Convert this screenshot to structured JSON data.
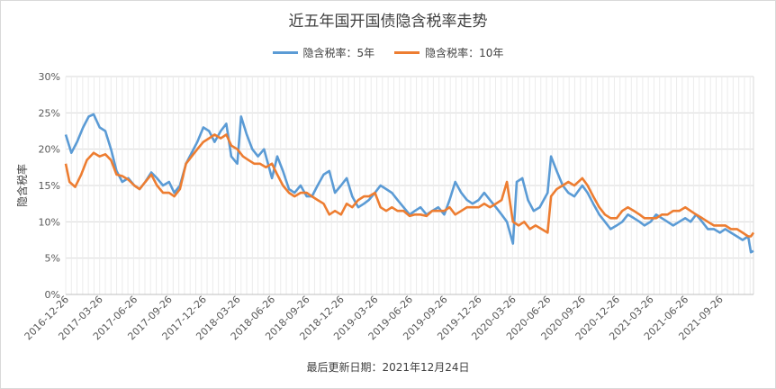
{
  "chart_data": {
    "type": "line",
    "title": "近五年国开国债隐含税率走势",
    "ylabel": "隐含税率",
    "footer": "最后更新日期：2021年12月24日",
    "ylim": [
      0,
      30
    ],
    "yticks": [
      "0%",
      "5%",
      "10%",
      "15%",
      "20%",
      "25%",
      "30%"
    ],
    "yvalues": [
      0,
      5,
      10,
      15,
      20,
      25,
      30
    ],
    "xticks": [
      "2016-12-26",
      "2017-03-26",
      "2017-06-26",
      "2017-09-26",
      "2017-12-26",
      "2018-03-26",
      "2018-06-26",
      "2018-09-26",
      "2018-12-26",
      "2019-03-26",
      "2019-06-26",
      "2019-09-26",
      "2019-12-26",
      "2020-03-26",
      "2020-06-26",
      "2020-09-26",
      "2020-12-26",
      "2021-03-26",
      "2021-06-26",
      "2021-09-26"
    ],
    "x_end": "2021-12-24",
    "grid": true,
    "legend_position": "top",
    "series": [
      {
        "name": "隐含税率：5年",
        "color": "#5b9bd5",
        "points": [
          [
            "2016-12-26",
            22
          ],
          [
            "2017-01-10",
            19.5
          ],
          [
            "2017-01-25",
            21
          ],
          [
            "2017-02-10",
            23
          ],
          [
            "2017-02-25",
            24.5
          ],
          [
            "2017-03-10",
            24.8
          ],
          [
            "2017-03-26",
            23
          ],
          [
            "2017-04-10",
            22.5
          ],
          [
            "2017-04-25",
            20
          ],
          [
            "2017-05-10",
            17
          ],
          [
            "2017-05-25",
            15.5
          ],
          [
            "2017-06-10",
            16
          ],
          [
            "2017-06-26",
            15
          ],
          [
            "2017-07-10",
            14.5
          ],
          [
            "2017-07-25",
            15.5
          ],
          [
            "2017-08-10",
            16.8
          ],
          [
            "2017-08-25",
            16
          ],
          [
            "2017-09-10",
            15
          ],
          [
            "2017-09-26",
            15.5
          ],
          [
            "2017-10-10",
            14
          ],
          [
            "2017-10-25",
            15
          ],
          [
            "2017-11-10",
            18
          ],
          [
            "2017-11-25",
            19.5
          ],
          [
            "2017-12-10",
            21
          ],
          [
            "2017-12-26",
            23
          ],
          [
            "2018-01-10",
            22.5
          ],
          [
            "2018-01-25",
            21
          ],
          [
            "2018-02-10",
            22.5
          ],
          [
            "2018-02-25",
            23.5
          ],
          [
            "2018-03-10",
            19
          ],
          [
            "2018-03-26",
            18
          ],
          [
            "2018-04-05",
            24.5
          ],
          [
            "2018-04-20",
            22
          ],
          [
            "2018-05-05",
            20
          ],
          [
            "2018-05-20",
            19
          ],
          [
            "2018-06-05",
            20
          ],
          [
            "2018-06-26",
            16
          ],
          [
            "2018-07-10",
            19
          ],
          [
            "2018-07-25",
            17
          ],
          [
            "2018-08-10",
            14.5
          ],
          [
            "2018-08-25",
            14
          ],
          [
            "2018-09-10",
            15
          ],
          [
            "2018-09-26",
            13.5
          ],
          [
            "2018-10-10",
            13.5
          ],
          [
            "2018-10-25",
            15
          ],
          [
            "2018-11-10",
            16.5
          ],
          [
            "2018-11-25",
            17
          ],
          [
            "2018-12-10",
            14
          ],
          [
            "2018-12-26",
            15
          ],
          [
            "2019-01-10",
            16
          ],
          [
            "2019-01-25",
            13.5
          ],
          [
            "2019-02-10",
            12
          ],
          [
            "2019-02-25",
            12.5
          ],
          [
            "2019-03-10",
            13
          ],
          [
            "2019-03-26",
            14
          ],
          [
            "2019-04-10",
            15
          ],
          [
            "2019-04-25",
            14.5
          ],
          [
            "2019-05-10",
            14
          ],
          [
            "2019-05-25",
            13
          ],
          [
            "2019-06-10",
            12
          ],
          [
            "2019-06-26",
            11
          ],
          [
            "2019-07-10",
            11.5
          ],
          [
            "2019-07-25",
            12
          ],
          [
            "2019-08-10",
            11
          ],
          [
            "2019-08-25",
            11.5
          ],
          [
            "2019-09-10",
            12
          ],
          [
            "2019-09-26",
            11
          ],
          [
            "2019-10-10",
            13
          ],
          [
            "2019-10-25",
            15.5
          ],
          [
            "2019-11-10",
            14
          ],
          [
            "2019-11-25",
            13
          ],
          [
            "2019-12-10",
            12.5
          ],
          [
            "2019-12-26",
            13
          ],
          [
            "2020-01-10",
            14
          ],
          [
            "2020-01-25",
            13
          ],
          [
            "2020-02-10",
            12
          ],
          [
            "2020-02-25",
            11
          ],
          [
            "2020-03-10",
            10
          ],
          [
            "2020-03-26",
            7
          ],
          [
            "2020-04-05",
            15.5
          ],
          [
            "2020-04-20",
            16
          ],
          [
            "2020-05-05",
            13
          ],
          [
            "2020-05-20",
            11.5
          ],
          [
            "2020-06-05",
            12
          ],
          [
            "2020-06-26",
            14
          ],
          [
            "2020-07-05",
            19
          ],
          [
            "2020-07-20",
            17
          ],
          [
            "2020-08-05",
            15
          ],
          [
            "2020-08-20",
            14
          ],
          [
            "2020-09-05",
            13.5
          ],
          [
            "2020-09-26",
            15
          ],
          [
            "2020-10-10",
            14
          ],
          [
            "2020-10-25",
            12.5
          ],
          [
            "2020-11-10",
            11
          ],
          [
            "2020-11-25",
            10
          ],
          [
            "2020-12-10",
            9
          ],
          [
            "2020-12-26",
            9.5
          ],
          [
            "2021-01-10",
            10
          ],
          [
            "2021-01-25",
            11
          ],
          [
            "2021-02-10",
            10.5
          ],
          [
            "2021-02-25",
            10
          ],
          [
            "2021-03-10",
            9.5
          ],
          [
            "2021-03-26",
            10
          ],
          [
            "2021-04-10",
            11
          ],
          [
            "2021-04-25",
            10.5
          ],
          [
            "2021-05-10",
            10
          ],
          [
            "2021-05-25",
            9.5
          ],
          [
            "2021-06-10",
            10
          ],
          [
            "2021-06-26",
            10.5
          ],
          [
            "2021-07-10",
            10
          ],
          [
            "2021-07-25",
            11
          ],
          [
            "2021-08-10",
            10
          ],
          [
            "2021-08-25",
            9
          ],
          [
            "2021-09-10",
            9
          ],
          [
            "2021-09-26",
            8.5
          ],
          [
            "2021-10-10",
            9
          ],
          [
            "2021-10-25",
            8.5
          ],
          [
            "2021-11-10",
            8
          ],
          [
            "2021-11-25",
            7.5
          ],
          [
            "2021-12-10",
            8
          ],
          [
            "2021-12-17",
            5.8
          ],
          [
            "2021-12-24",
            6
          ]
        ]
      },
      {
        "name": "隐含税率：10年",
        "color": "#ed7d31",
        "points": [
          [
            "2016-12-26",
            18
          ],
          [
            "2017-01-05",
            15.5
          ],
          [
            "2017-01-20",
            14.8
          ],
          [
            "2017-02-05",
            16.5
          ],
          [
            "2017-02-20",
            18.5
          ],
          [
            "2017-03-10",
            19.5
          ],
          [
            "2017-03-26",
            19
          ],
          [
            "2017-04-10",
            19.3
          ],
          [
            "2017-04-25",
            18.5
          ],
          [
            "2017-05-10",
            16.5
          ],
          [
            "2017-05-25",
            16.3
          ],
          [
            "2017-06-10",
            15.8
          ],
          [
            "2017-06-26",
            15
          ],
          [
            "2017-07-10",
            14.5
          ],
          [
            "2017-07-25",
            15.5
          ],
          [
            "2017-08-10",
            16.5
          ],
          [
            "2017-08-25",
            15
          ],
          [
            "2017-09-10",
            14
          ],
          [
            "2017-09-26",
            14
          ],
          [
            "2017-10-10",
            13.5
          ],
          [
            "2017-10-25",
            14.5
          ],
          [
            "2017-11-10",
            18
          ],
          [
            "2017-11-25",
            19
          ],
          [
            "2017-12-10",
            20
          ],
          [
            "2017-12-26",
            21
          ],
          [
            "2018-01-10",
            21.5
          ],
          [
            "2018-01-25",
            22
          ],
          [
            "2018-02-10",
            21.5
          ],
          [
            "2018-02-25",
            22
          ],
          [
            "2018-03-10",
            20.5
          ],
          [
            "2018-03-26",
            20
          ],
          [
            "2018-04-10",
            19
          ],
          [
            "2018-04-25",
            18.5
          ],
          [
            "2018-05-10",
            18
          ],
          [
            "2018-05-25",
            18
          ],
          [
            "2018-06-10",
            17.5
          ],
          [
            "2018-06-26",
            18
          ],
          [
            "2018-07-10",
            16.5
          ],
          [
            "2018-07-25",
            15
          ],
          [
            "2018-08-10",
            14
          ],
          [
            "2018-08-25",
            13.5
          ],
          [
            "2018-09-10",
            14
          ],
          [
            "2018-09-26",
            14
          ],
          [
            "2018-10-10",
            13.5
          ],
          [
            "2018-10-25",
            13
          ],
          [
            "2018-11-10",
            12.5
          ],
          [
            "2018-11-25",
            11
          ],
          [
            "2018-12-10",
            11.5
          ],
          [
            "2018-12-26",
            11
          ],
          [
            "2019-01-10",
            12.5
          ],
          [
            "2019-01-25",
            12
          ],
          [
            "2019-02-10",
            13
          ],
          [
            "2019-02-25",
            13.5
          ],
          [
            "2019-03-10",
            13.5
          ],
          [
            "2019-03-26",
            14
          ],
          [
            "2019-04-10",
            12
          ],
          [
            "2019-04-25",
            11.5
          ],
          [
            "2019-05-10",
            12
          ],
          [
            "2019-05-25",
            11.5
          ],
          [
            "2019-06-10",
            11.5
          ],
          [
            "2019-06-26",
            10.8
          ],
          [
            "2019-07-10",
            11
          ],
          [
            "2019-07-25",
            11
          ],
          [
            "2019-08-10",
            10.8
          ],
          [
            "2019-08-25",
            11.5
          ],
          [
            "2019-09-10",
            11.5
          ],
          [
            "2019-09-26",
            11.5
          ],
          [
            "2019-10-10",
            12
          ],
          [
            "2019-10-25",
            11
          ],
          [
            "2019-11-10",
            11.5
          ],
          [
            "2019-11-25",
            12
          ],
          [
            "2019-12-10",
            12
          ],
          [
            "2019-12-26",
            12
          ],
          [
            "2020-01-10",
            12.5
          ],
          [
            "2020-01-25",
            12
          ],
          [
            "2020-02-10",
            12.5
          ],
          [
            "2020-02-25",
            13
          ],
          [
            "2020-03-10",
            15.5
          ],
          [
            "2020-03-26",
            10
          ],
          [
            "2020-04-10",
            9.5
          ],
          [
            "2020-04-25",
            10
          ],
          [
            "2020-05-10",
            9
          ],
          [
            "2020-05-25",
            9.5
          ],
          [
            "2020-06-10",
            9
          ],
          [
            "2020-06-26",
            8.5
          ],
          [
            "2020-07-05",
            13.5
          ],
          [
            "2020-07-20",
            14.5
          ],
          [
            "2020-08-05",
            15
          ],
          [
            "2020-08-20",
            15.5
          ],
          [
            "2020-09-05",
            15
          ],
          [
            "2020-09-26",
            16
          ],
          [
            "2020-10-10",
            15
          ],
          [
            "2020-10-25",
            13.5
          ],
          [
            "2020-11-10",
            12
          ],
          [
            "2020-11-25",
            11
          ],
          [
            "2020-12-10",
            10.5
          ],
          [
            "2020-12-26",
            10.5
          ],
          [
            "2021-01-10",
            11.5
          ],
          [
            "2021-01-25",
            12
          ],
          [
            "2021-02-10",
            11.5
          ],
          [
            "2021-02-25",
            11
          ],
          [
            "2021-03-10",
            10.5
          ],
          [
            "2021-03-26",
            10.5
          ],
          [
            "2021-04-10",
            10.5
          ],
          [
            "2021-04-25",
            11
          ],
          [
            "2021-05-10",
            11
          ],
          [
            "2021-05-25",
            11.5
          ],
          [
            "2021-06-10",
            11.5
          ],
          [
            "2021-06-26",
            12
          ],
          [
            "2021-07-10",
            11.5
          ],
          [
            "2021-07-25",
            11
          ],
          [
            "2021-08-10",
            10.5
          ],
          [
            "2021-08-25",
            10
          ],
          [
            "2021-09-10",
            9.5
          ],
          [
            "2021-09-26",
            9.5
          ],
          [
            "2021-10-10",
            9.5
          ],
          [
            "2021-10-25",
            9
          ],
          [
            "2021-11-10",
            9
          ],
          [
            "2021-11-25",
            8.5
          ],
          [
            "2021-12-10",
            8
          ],
          [
            "2021-12-17",
            8
          ],
          [
            "2021-12-24",
            8.5
          ]
        ]
      }
    ]
  }
}
